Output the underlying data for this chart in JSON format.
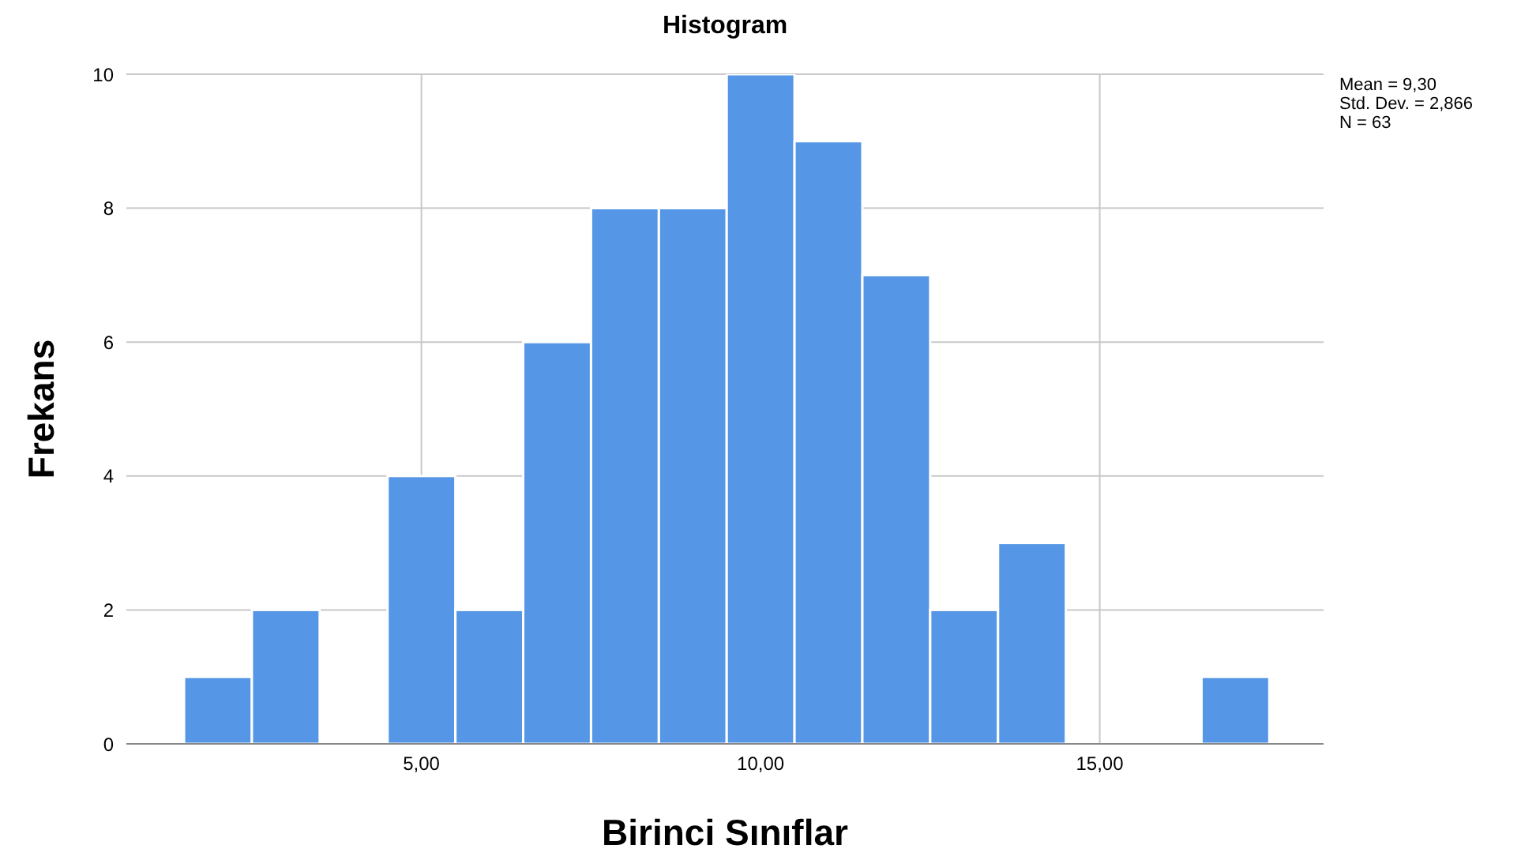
{
  "chart_data": {
    "type": "histogram",
    "title": "Histogram",
    "xlabel": "Birinci Sınıflar",
    "ylabel": "Frekans",
    "bins": [
      1.5,
      2.5,
      3.5,
      4.5,
      5.5,
      6.5,
      7.5,
      8.5,
      9.5,
      10.5,
      11.5,
      12.5,
      13.5,
      14.5,
      15.5,
      16.5,
      17.5
    ],
    "values": [
      1,
      2,
      0,
      4,
      2,
      6,
      8,
      8,
      10,
      9,
      7,
      2,
      3,
      0,
      0,
      1
    ],
    "color": "#5596e6",
    "xlim": [
      0.65,
      18.3
    ],
    "xticks": [
      {
        "value": 5,
        "label": "5,00"
      },
      {
        "value": 10,
        "label": "10,00"
      },
      {
        "value": 15,
        "label": "15,00"
      }
    ],
    "ylim": [
      0,
      10
    ],
    "yticks": [
      0,
      2,
      4,
      6,
      8,
      10
    ],
    "grid": true,
    "annotations": [
      "Mean = 9,30",
      "Std. Dev. = 2,866",
      "N = 63"
    ]
  }
}
